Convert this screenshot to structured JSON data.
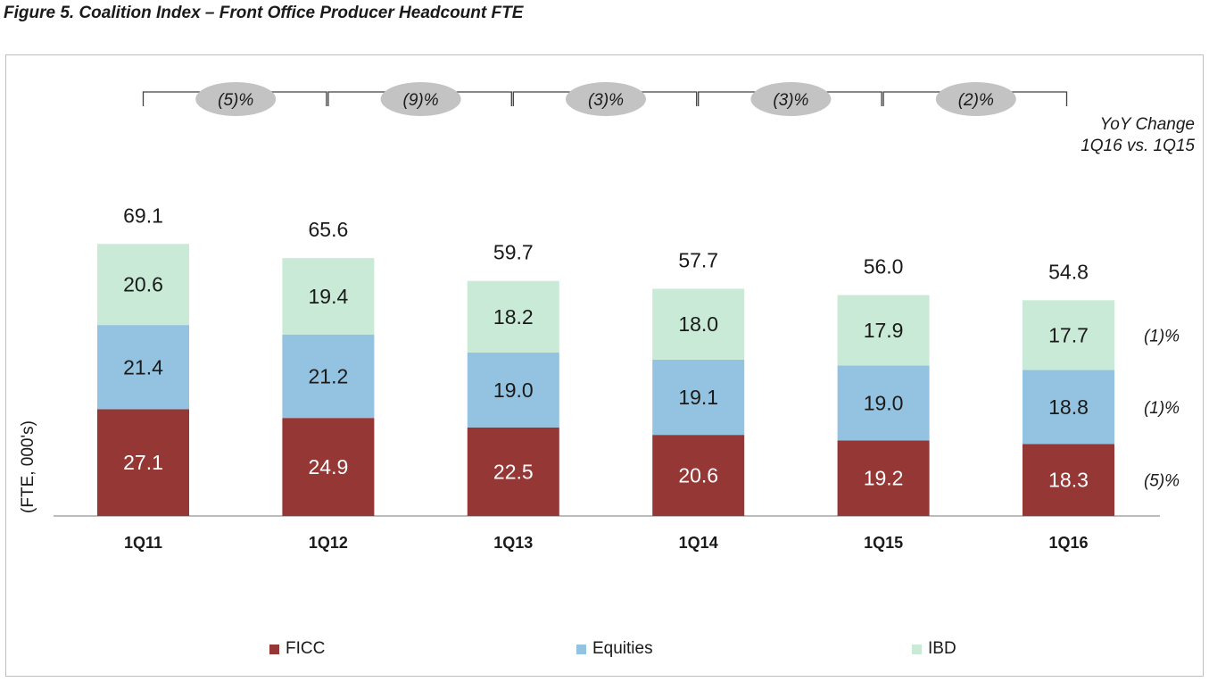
{
  "figure": {
    "title": "Figure 5. Coalition Index – Front Office Producer Headcount FTE",
    "yoy_header_line1": "YoY Change",
    "yoy_header_line2": "1Q16 vs. 1Q15"
  },
  "chart_data": {
    "type": "bar",
    "stacked": true,
    "title": "Figure 5. Coalition Index – Front Office Producer Headcount FTE",
    "xlabel": "",
    "ylabel": "(FTE, 000's)",
    "categories": [
      "1Q11",
      "1Q12",
      "1Q13",
      "1Q14",
      "1Q15",
      "1Q16"
    ],
    "series": [
      {
        "name": "FICC",
        "color": "#953735",
        "values": [
          27.1,
          24.9,
          22.5,
          20.6,
          19.2,
          18.3
        ]
      },
      {
        "name": "Equities",
        "color": "#93C3E0",
        "values": [
          21.4,
          21.2,
          19.0,
          19.1,
          19.0,
          18.8
        ]
      },
      {
        "name": "IBD",
        "color": "#C8EAD6",
        "values": [
          20.6,
          19.4,
          18.2,
          18.0,
          17.9,
          17.7
        ]
      }
    ],
    "totals": [
      "69.1",
      "65.6",
      "59.7",
      "57.7",
      "56.0",
      "54.8"
    ],
    "value_labels": [
      [
        "27.1",
        "24.9",
        "22.5",
        "20.6",
        "19.2",
        "18.3"
      ],
      [
        "21.4",
        "21.2",
        "19.0",
        "19.1",
        "19.0",
        "18.8"
      ],
      [
        "20.6",
        "19.4",
        "18.2",
        "18.0",
        "17.9",
        "17.7"
      ]
    ],
    "period_changes": [
      "(5)%",
      "(9)%",
      "(3)%",
      "(3)%",
      "(2)%"
    ],
    "yoy_change": {
      "IBD": "(1)%",
      "Equities": "(1)%",
      "FICC": "(5)%"
    },
    "ylim": [
      0,
      69.1
    ],
    "grid": false,
    "legend_placement": "bottom"
  }
}
